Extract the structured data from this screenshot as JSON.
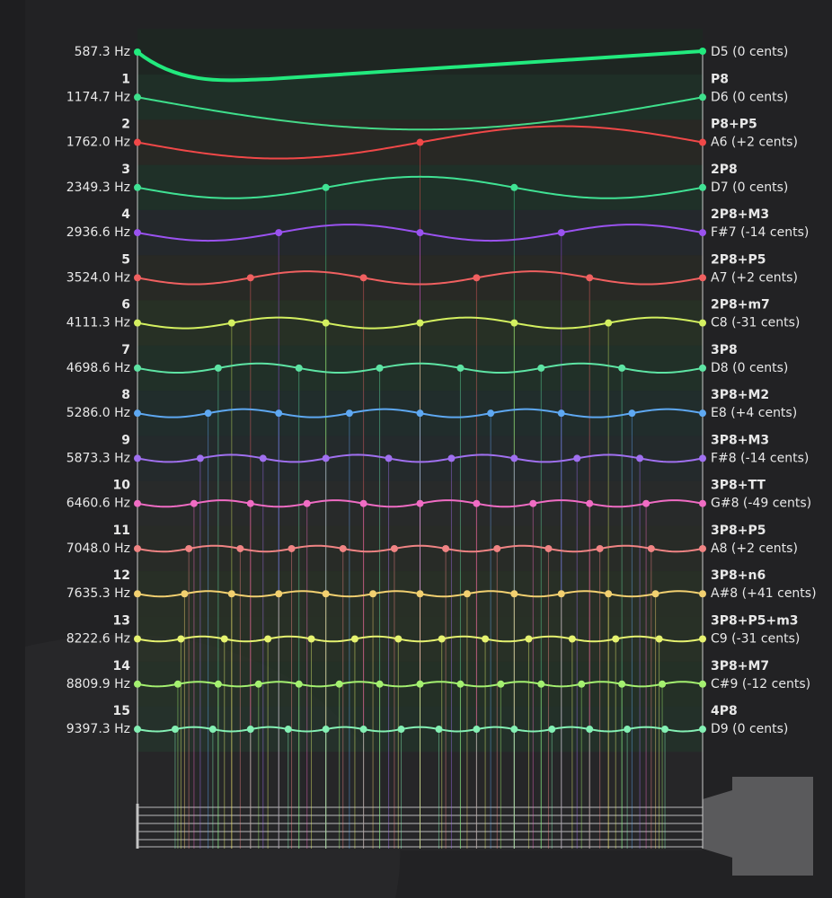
{
  "fundamental": {
    "frequency": "587.3 Hz",
    "note": "D5 (0 cents)",
    "color": "#22ea7e"
  },
  "overtones": [
    {
      "overtone": 1,
      "frequency": "1174.7 Hz",
      "interval": "P8",
      "note": "D6 (0 cents)",
      "color": "#3ee08c"
    },
    {
      "overtone": 2,
      "frequency": "1762.0 Hz",
      "interval": "P8+P5",
      "note": "A6 (+2 cents)",
      "color": "#f04848"
    },
    {
      "overtone": 3,
      "frequency": "2349.3 Hz",
      "interval": "2P8",
      "note": "D7 (0 cents)",
      "color": "#40e294"
    },
    {
      "overtone": 4,
      "frequency": "2936.6 Hz",
      "interval": "2P8+M3",
      "note": "F#7 (-14 cents)",
      "color": "#9a52f0"
    },
    {
      "overtone": 5,
      "frequency": "3524.0 Hz",
      "interval": "2P8+P5",
      "note": "A7 (+2 cents)",
      "color": "#f06060"
    },
    {
      "overtone": 6,
      "frequency": "4111.3 Hz",
      "interval": "2P8+m7",
      "note": "C8 (-31 cents)",
      "color": "#d4f060"
    },
    {
      "overtone": 7,
      "frequency": "4698.6 Hz",
      "interval": "3P8",
      "note": "D8 (0 cents)",
      "color": "#5ee4a4"
    },
    {
      "overtone": 8,
      "frequency": "5286.0 Hz",
      "interval": "3P8+M2",
      "note": "E8 (+4 cents)",
      "color": "#5ea8f2"
    },
    {
      "overtone": 9,
      "frequency": "5873.3 Hz",
      "interval": "3P8+M3",
      "note": "F#8 (-14 cents)",
      "color": "#a070f0"
    },
    {
      "overtone": 10,
      "frequency": "6460.6 Hz",
      "interval": "3P8+TT",
      "note": "G#8 (-49 cents)",
      "color": "#f06cc4"
    },
    {
      "overtone": 11,
      "frequency": "7048.0 Hz",
      "interval": "3P8+P5",
      "note": "A8 (+2 cents)",
      "color": "#f08484"
    },
    {
      "overtone": 12,
      "frequency": "7635.3 Hz",
      "interval": "3P8+n6",
      "note": "A#8 (+41 cents)",
      "color": "#f2d070"
    },
    {
      "overtone": 13,
      "frequency": "8222.6 Hz",
      "interval": "3P8+P5+m3",
      "note": "C9 (-31 cents)",
      "color": "#e6f270"
    },
    {
      "overtone": 14,
      "frequency": "8809.9 Hz",
      "interval": "3P8+M7",
      "note": "C#9 (-12 cents)",
      "color": "#a4f070"
    },
    {
      "overtone": 15,
      "frequency": "9397.3 Hz",
      "interval": "4P8",
      "note": "D9 (0 cents)",
      "color": "#84f0b4"
    }
  ]
}
